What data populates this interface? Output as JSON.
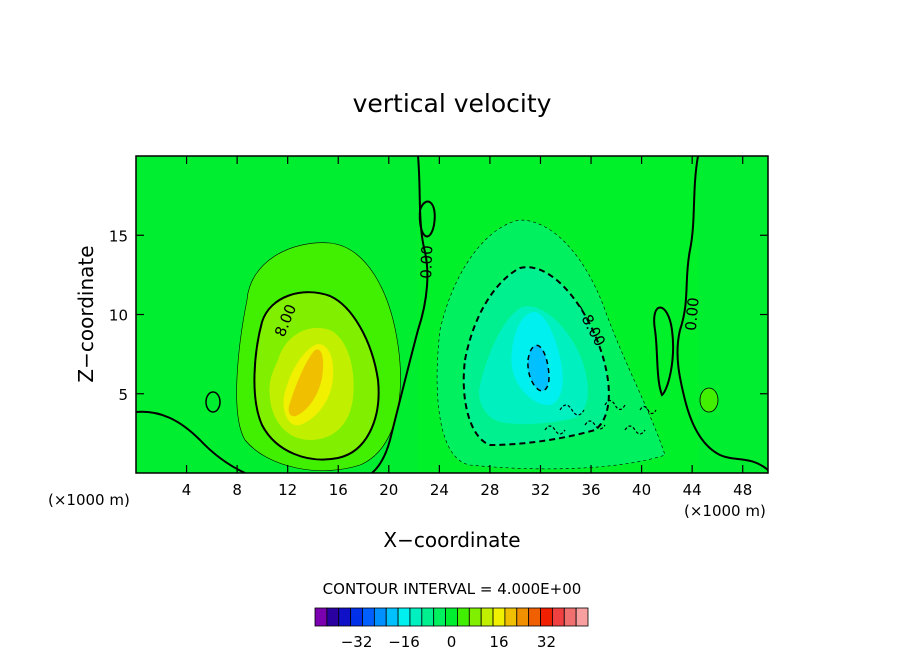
{
  "chart_data": {
    "type": "heatmap",
    "title": "vertical velocity",
    "xlabel": "X−coordinate",
    "ylabel": "Z−coordinate",
    "x_unit": "(×1000 m)",
    "y_unit": "(×1000 m)",
    "xlim": [
      0,
      50
    ],
    "ylim": [
      0,
      20
    ],
    "x_ticks": [
      4,
      8,
      12,
      16,
      20,
      24,
      28,
      32,
      36,
      40,
      44,
      48
    ],
    "y_ticks": [
      5,
      10,
      15
    ],
    "contour_interval_label": "CONTOUR INTERVAL = 4.000E+00",
    "contour_labels": [
      {
        "text": "8.00",
        "x": 12.2,
        "z": 9.5,
        "angle": -68
      },
      {
        "text": "0.00",
        "x": 23.4,
        "z": 13.3,
        "angle": -88
      },
      {
        "text": "−8.00",
        "x": 35.6,
        "z": 9.2,
        "angle": 62
      },
      {
        "text": "0.00",
        "x": 44.4,
        "z": 10.0,
        "angle": -85
      }
    ],
    "features": [
      {
        "name": "updraft",
        "center_x": 14,
        "center_z": 6.5,
        "peak": 24
      },
      {
        "name": "downdraft",
        "center_x": 31.5,
        "center_z": 6.8,
        "peak": -16
      }
    ],
    "colorbar": {
      "colors": [
        "#7a00b0",
        "#2a00a0",
        "#1010c8",
        "#0030e8",
        "#0060ff",
        "#0090ff",
        "#00c0ff",
        "#00f0f0",
        "#00f0c0",
        "#00f090",
        "#00f060",
        "#00ee30",
        "#40f000",
        "#80f000",
        "#c0f000",
        "#f0f000",
        "#f0c000",
        "#f09000",
        "#f06000",
        "#f02000",
        "#f04040",
        "#f07070",
        "#f8a0a0"
      ],
      "tick_labels": [
        "−32",
        "−16",
        "0",
        "16",
        "32"
      ],
      "tick_values": [
        -32,
        -16,
        0,
        16,
        32
      ]
    },
    "grid": false
  }
}
